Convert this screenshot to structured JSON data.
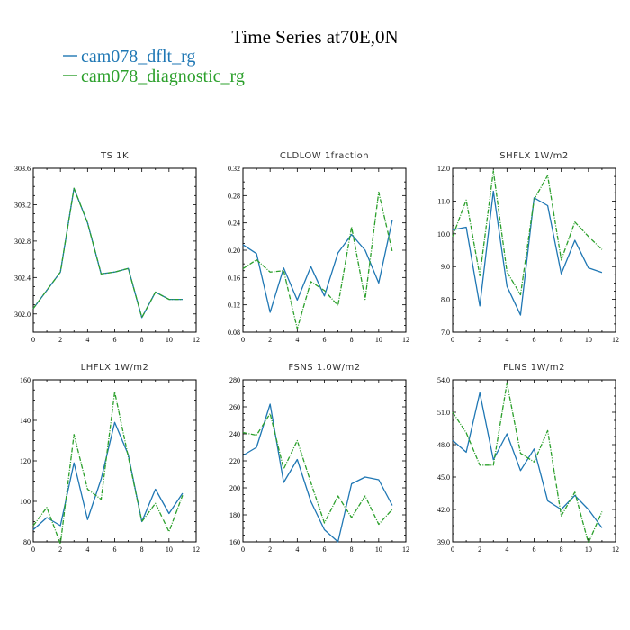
{
  "chart_data": {
    "type": "line",
    "title": "Time Series at70E,0N",
    "legend": {
      "placement": "top-left",
      "entries": [
        {
          "name": "cam078_dflt_rg",
          "color": "#1f77b4"
        },
        {
          "name": "cam078_diagnostic_rg",
          "color": "#2ca02c"
        }
      ]
    },
    "panels": [
      {
        "title": "TS   1K",
        "x": [
          0,
          1,
          2,
          3,
          4,
          5,
          6,
          7,
          8,
          9,
          10,
          11
        ],
        "xlim": [
          0,
          12
        ],
        "xticks": [
          "0",
          "2",
          "4",
          "6",
          "8",
          "10",
          "12"
        ],
        "ylim": [
          301.8,
          303.6
        ],
        "yticks": [
          "302.0",
          "302.4",
          "302.8",
          "303.2",
          "303.6"
        ],
        "series": [
          {
            "name": "cam078_dflt_rg",
            "values": [
              302.06,
              302.26,
              302.46,
              303.38,
              303.0,
              302.44,
              302.46,
              302.5,
              301.96,
              302.24,
              302.16,
              302.16
            ]
          },
          {
            "name": "cam078_diagnostic_rg",
            "values": [
              302.06,
              302.26,
              302.46,
              303.38,
              303.0,
              302.44,
              302.46,
              302.5,
              301.96,
              302.24,
              302.16,
              302.16
            ]
          }
        ]
      },
      {
        "title": "CLDLOW   1fraction",
        "x": [
          0,
          1,
          2,
          3,
          4,
          5,
          6,
          7,
          8,
          9,
          10,
          11
        ],
        "xlim": [
          0,
          12
        ],
        "xticks": [
          "0",
          "2",
          "4",
          "6",
          "8",
          "10",
          "12"
        ],
        "ylim": [
          0.08,
          0.32
        ],
        "yticks": [
          "0.08",
          "0.12",
          "0.16",
          "0.20",
          "0.24",
          "0.28",
          "0.32"
        ],
        "series": [
          {
            "name": "cam078_dflt_rg",
            "values": [
              0.208,
              0.195,
              0.109,
              0.174,
              0.127,
              0.176,
              0.133,
              0.196,
              0.223,
              0.2,
              0.152,
              0.244
            ]
          },
          {
            "name": "cam078_diagnostic_rg",
            "values": [
              0.173,
              0.186,
              0.168,
              0.17,
              0.085,
              0.154,
              0.141,
              0.119,
              0.234,
              0.128,
              0.285,
              0.198
            ]
          }
        ]
      },
      {
        "title": "SHFLX   1W/m2",
        "x": [
          0,
          1,
          2,
          3,
          4,
          5,
          6,
          7,
          8,
          9,
          10,
          11
        ],
        "xlim": [
          0,
          12
        ],
        "xticks": [
          "0",
          "2",
          "4",
          "6",
          "8",
          "10",
          "12"
        ],
        "ylim": [
          7.0,
          12.0
        ],
        "yticks": [
          "7.0",
          "8.0",
          "9.0",
          "10.0",
          "11.0",
          "12.0"
        ],
        "series": [
          {
            "name": "cam078_dflt_rg",
            "values": [
              10.12,
              10.2,
              7.8,
              11.3,
              8.4,
              7.52,
              11.1,
              10.86,
              8.78,
              9.8,
              8.96,
              8.82
            ]
          },
          {
            "name": "cam078_diagnostic_rg",
            "values": [
              9.92,
              11.03,
              8.72,
              11.92,
              8.84,
              8.14,
              11.05,
              11.78,
              9.2,
              10.36,
              9.92,
              9.52
            ]
          }
        ]
      },
      {
        "title": "LHFLX   1W/m2",
        "x": [
          0,
          1,
          2,
          3,
          4,
          5,
          6,
          7,
          8,
          9,
          10,
          11
        ],
        "xlim": [
          0,
          12
        ],
        "xticks": [
          "0",
          "2",
          "4",
          "6",
          "8",
          "10",
          "12"
        ],
        "ylim": [
          80,
          160
        ],
        "yticks": [
          "80",
          "100",
          "120",
          "140",
          "160"
        ],
        "series": [
          {
            "name": "cam078_dflt_rg",
            "values": [
              86,
              92,
              88,
              119,
              91,
              111,
              139,
              123,
              90,
              106,
              94,
              104
            ]
          },
          {
            "name": "cam078_diagnostic_rg",
            "values": [
              88,
              97,
              79,
              133,
              106,
              101,
              154,
              122,
              90,
              99,
              85,
              103
            ]
          }
        ]
      },
      {
        "title": "FSNS   1.0W/m2",
        "x": [
          0,
          1,
          2,
          3,
          4,
          5,
          6,
          7,
          8,
          9,
          10,
          11
        ],
        "xlim": [
          0,
          12
        ],
        "xticks": [
          "0",
          "2",
          "4",
          "6",
          "8",
          "10",
          "12"
        ],
        "ylim": [
          160,
          280
        ],
        "yticks": [
          "160",
          "180",
          "200",
          "220",
          "240",
          "260",
          "280"
        ],
        "series": [
          {
            "name": "cam078_dflt_rg",
            "values": [
              224,
              230,
              262,
              204,
              221,
              190,
              169,
              160,
              203,
              208,
              206,
              187
            ]
          },
          {
            "name": "cam078_diagnostic_rg",
            "values": [
              241,
              239,
              255,
              214,
              235,
              204,
              174,
              194,
              178,
              194,
              173,
              184
            ]
          }
        ]
      },
      {
        "title": "FLNS   1W/m2",
        "x": [
          0,
          1,
          2,
          3,
          4,
          5,
          6,
          7,
          8,
          9,
          10,
          11
        ],
        "xlim": [
          0,
          12
        ],
        "xticks": [
          "0",
          "2",
          "4",
          "6",
          "8",
          "10",
          "12"
        ],
        "ylim": [
          39.0,
          54.0
        ],
        "yticks": [
          "39.0",
          "42.0",
          "45.0",
          "48.0",
          "51.0",
          "54.0"
        ],
        "series": [
          {
            "name": "cam078_dflt_rg",
            "values": [
              48.4,
              47.3,
              52.8,
              46.6,
              49.0,
              45.6,
              47.6,
              42.8,
              42.0,
              43.3,
              42.0,
              40.3
            ]
          },
          {
            "name": "cam078_diagnostic_rg",
            "values": [
              51.0,
              49.1,
              46.1,
              46.1,
              53.7,
              47.2,
              46.4,
              49.3,
              41.4,
              43.6,
              38.9,
              41.8
            ]
          }
        ]
      }
    ]
  }
}
